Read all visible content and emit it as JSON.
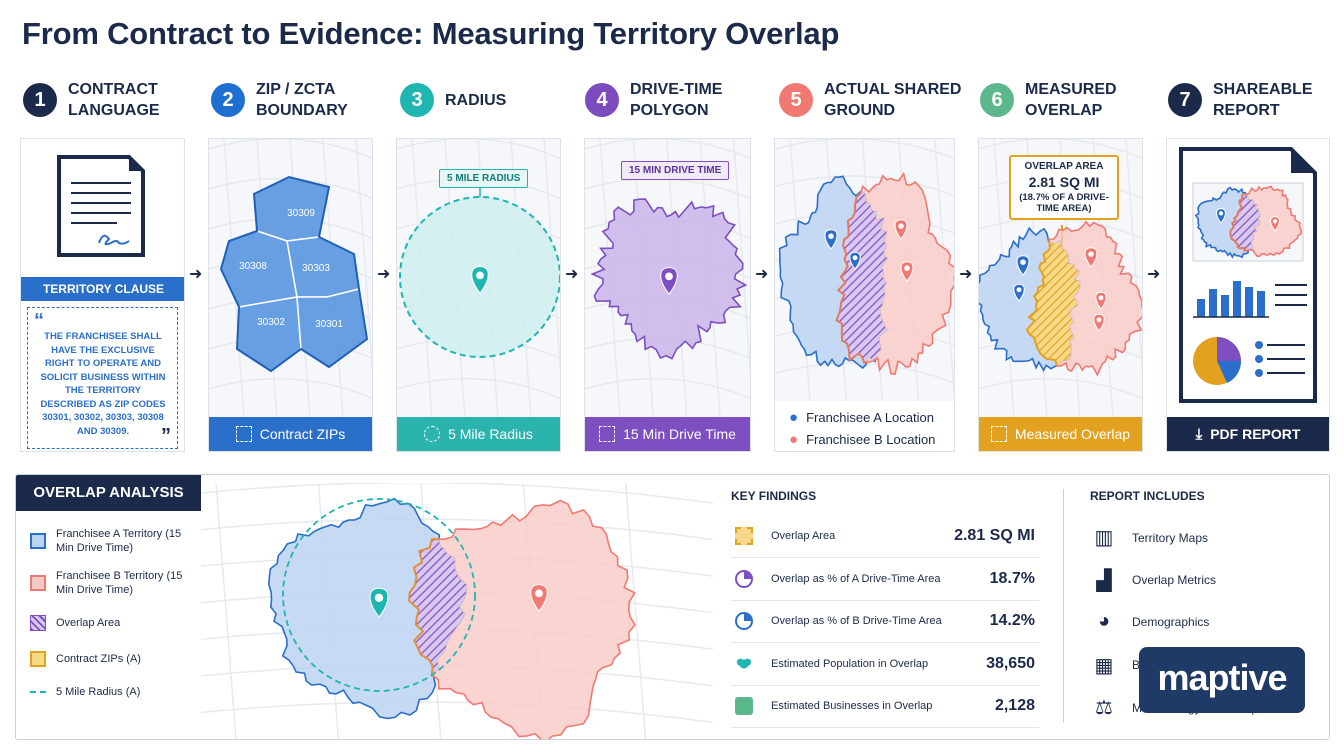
{
  "title": "From Contract to Evidence: Measuring Territory Overlap",
  "steps": [
    {
      "number": "1",
      "label_lines": [
        "CONTRACT",
        "LANGUAGE"
      ]
    },
    {
      "number": "2",
      "label_lines": [
        "ZIP / ZCTA",
        "BOUNDARY"
      ]
    },
    {
      "number": "3",
      "label_lines": [
        "RADIUS"
      ]
    },
    {
      "number": "4",
      "label_lines": [
        "DRIVE-TIME",
        "POLYGON"
      ]
    },
    {
      "number": "5",
      "label_lines": [
        "ACTUAL SHARED",
        "GROUND"
      ]
    },
    {
      "number": "6",
      "label_lines": [
        "MEASURED",
        "OVERLAP"
      ]
    },
    {
      "number": "7",
      "label_lines": [
        "SHAREABLE",
        "REPORT"
      ]
    }
  ],
  "clause": {
    "heading": "TERRITORY CLAUSE",
    "open_quote": "“",
    "close_quote": "”",
    "text": "THE FRANCHISEE SHALL HAVE THE EXCLUSIVE RIGHT TO OPERATE AND SOLICIT BUSINESS WITHIN THE TERRITORY DESCRIBED AS ZIP CODES 30301, 30302, 30303, 30308 AND 30309."
  },
  "zip_card": {
    "zips": [
      "30309",
      "30308",
      "30303",
      "30302",
      "30301"
    ],
    "footer": "Contract ZIPs"
  },
  "radius_card": {
    "tag": "5 MILE RADIUS",
    "footer": "5 Mile Radius"
  },
  "drive_card": {
    "tag": "15 MIN DRIVE TIME",
    "footer": "15 Min Drive Time"
  },
  "shared_card": {
    "legend": [
      "Franchisee A Location",
      "Franchisee B Location"
    ]
  },
  "overlap_card": {
    "callout": [
      "OVERLAP AREA",
      "2.81 SQ MI",
      "(18.7% OF A DRIVE-TIME AREA)"
    ],
    "footer": "Measured Overlap"
  },
  "report_card": {
    "footer": "PDF REPORT"
  },
  "analysis": {
    "title": "OVERLAP ANALYSIS",
    "legend": [
      "Franchisee A Territory (15 Min Drive Time)",
      "Franchisee B Territory (15 Min Drive Time)",
      "Overlap Area",
      "Contract ZIPs (A)",
      "5 Mile Radius (A)"
    ]
  },
  "key_findings": {
    "title": "KEY FINDINGS",
    "rows": [
      {
        "label": "Overlap Area",
        "value": "2.81 SQ MI"
      },
      {
        "label": "Overlap as % of A Drive-Time Area",
        "value": "18.7%"
      },
      {
        "label": "Overlap as % of B Drive-Time Area",
        "value": "14.2%"
      },
      {
        "label": "Estimated Population in Overlap",
        "value": "38,650"
      },
      {
        "label": "Estimated Businesses in Overlap",
        "value": "2,128"
      }
    ]
  },
  "report_includes": {
    "title": "REPORT INCLUDES",
    "items": [
      "Territory Maps",
      "Overlap Metrics",
      "Demographics",
      "Businesses",
      "Methodology & Assumptions"
    ]
  },
  "logo": "maptive"
}
